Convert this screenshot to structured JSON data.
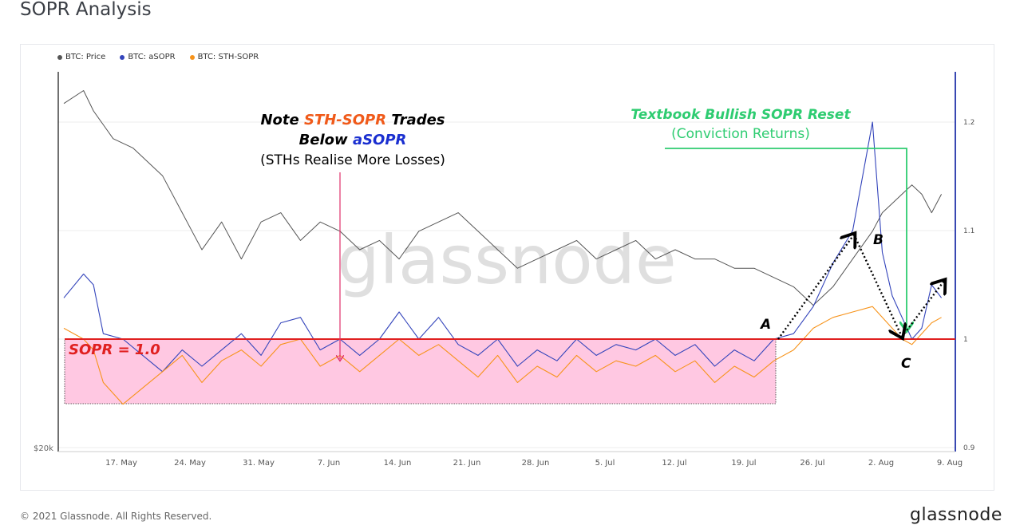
{
  "page": {
    "title": "SOPR Analysis",
    "copyright": "© 2021 Glassnode. All Rights Reserved.",
    "brand": "glassnode",
    "watermark": "glassnode"
  },
  "legend": [
    {
      "label": "BTC: Price",
      "color": "#555555"
    },
    {
      "label": "BTC: aSOPR",
      "color": "#3344bb"
    },
    {
      "label": "BTC: STH-SOPR",
      "color": "#f7931a"
    }
  ],
  "annotations": {
    "note_line1_a": "Note ",
    "note_line1_b": "STH-SOPR",
    "note_line1_c": " Trades",
    "note_line2_a": "Below ",
    "note_line2_b": "aSOPR",
    "note_line3": "(STHs Realise More Losses)",
    "reset_line1": "Textbook Bullish SOPR Reset",
    "reset_line2": "(Conviction Returns)",
    "sopr_label": "SOPR = 1.0",
    "point_a": "A",
    "point_b": "B",
    "point_c": "C"
  },
  "chart_data": {
    "type": "line",
    "x_ticks": [
      "17. May",
      "24. May",
      "31. May",
      "7. Jun",
      "14. Jun",
      "21. Jun",
      "28. Jun",
      "5. Jul",
      "12. Jul",
      "19. Jul",
      "26. Jul",
      "2. Aug",
      "9. Aug"
    ],
    "y_left_label": "$20k",
    "y_right_ticks": [
      {
        "value": 1.2,
        "label": "1.2"
      },
      {
        "value": 1.1,
        "label": "1.1"
      },
      {
        "value": 1.0,
        "label": "1"
      },
      {
        "value": 0.9,
        "label": "0.9"
      }
    ],
    "y_right_range": [
      0.9,
      1.25
    ],
    "x_range": [
      0,
      90
    ],
    "reference_line": 1.0,
    "colors": {
      "price": "#555555",
      "asopr": "#3344bb",
      "sth": "#f7931a",
      "reset": "#2ecc71",
      "ref": "#e02020",
      "shade": "#ffc8e2",
      "arrow_note": "#e0306a"
    },
    "series": [
      {
        "name": "BTC: Price",
        "axis": "left",
        "x": [
          0,
          2,
          3,
          5,
          7,
          9,
          10,
          12,
          13,
          14,
          16,
          18,
          19,
          20,
          22,
          24,
          26,
          28,
          30,
          32,
          34,
          36,
          38,
          40,
          42,
          43,
          44,
          46,
          48,
          50,
          52,
          54,
          56,
          58,
          60,
          62,
          64,
          66,
          68,
          70,
          72,
          74,
          76,
          78,
          80,
          82,
          83,
          84,
          85,
          86,
          87,
          88,
          89
        ],
        "values": [
          1.218,
          1.232,
          1.21,
          1.18,
          1.17,
          1.15,
          1.14,
          1.1,
          1.08,
          1.06,
          1.09,
          1.05,
          1.07,
          1.09,
          1.1,
          1.07,
          1.09,
          1.08,
          1.06,
          1.07,
          1.05,
          1.08,
          1.09,
          1.1,
          1.08,
          1.07,
          1.06,
          1.04,
          1.05,
          1.06,
          1.07,
          1.05,
          1.06,
          1.07,
          1.05,
          1.06,
          1.05,
          1.05,
          1.04,
          1.04,
          1.03,
          1.02,
          1.0,
          1.02,
          1.05,
          1.08,
          1.1,
          1.11,
          1.12,
          1.13,
          1.12,
          1.1,
          1.12
        ]
      },
      {
        "name": "BTC: aSOPR",
        "axis": "right",
        "x": [
          0,
          2,
          3,
          4,
          6,
          8,
          10,
          12,
          14,
          16,
          18,
          20,
          22,
          24,
          26,
          28,
          30,
          32,
          34,
          36,
          38,
          40,
          42,
          44,
          46,
          48,
          50,
          52,
          54,
          56,
          58,
          60,
          62,
          64,
          66,
          68,
          70,
          72,
          74,
          76,
          78,
          80,
          82,
          83,
          84,
          85,
          86,
          87,
          88,
          89
        ],
        "values": [
          1.038,
          1.06,
          1.05,
          1.005,
          1.0,
          0.985,
          0.97,
          0.99,
          0.975,
          0.99,
          1.005,
          0.985,
          1.015,
          1.02,
          0.99,
          1.0,
          0.985,
          1.0,
          1.025,
          1.0,
          1.02,
          0.995,
          0.985,
          1.0,
          0.975,
          0.99,
          0.98,
          1.0,
          0.985,
          0.995,
          0.99,
          1.0,
          0.985,
          0.995,
          0.975,
          0.99,
          0.98,
          1.0,
          1.005,
          1.03,
          1.07,
          1.1,
          1.2,
          1.08,
          1.04,
          1.02,
          1.0,
          1.01,
          1.05,
          1.038
        ]
      },
      {
        "name": "BTC: STH-SOPR",
        "axis": "right",
        "x": [
          0,
          2,
          3,
          4,
          6,
          8,
          10,
          12,
          14,
          16,
          18,
          20,
          22,
          24,
          26,
          28,
          30,
          32,
          34,
          36,
          38,
          40,
          42,
          44,
          46,
          48,
          50,
          52,
          54,
          56,
          58,
          60,
          62,
          64,
          66,
          68,
          70,
          72,
          74,
          76,
          78,
          80,
          82,
          84,
          85,
          86,
          87,
          88,
          89
        ],
        "values": [
          1.01,
          1.0,
          0.99,
          0.96,
          0.94,
          0.955,
          0.97,
          0.985,
          0.96,
          0.98,
          0.99,
          0.975,
          0.995,
          1.0,
          0.975,
          0.985,
          0.97,
          0.985,
          1.0,
          0.985,
          0.995,
          0.98,
          0.965,
          0.985,
          0.96,
          0.975,
          0.965,
          0.985,
          0.97,
          0.98,
          0.975,
          0.985,
          0.97,
          0.98,
          0.96,
          0.975,
          0.965,
          0.98,
          0.99,
          1.01,
          1.02,
          1.025,
          1.03,
          1.01,
          1.0,
          0.995,
          1.005,
          1.015,
          1.02
        ]
      }
    ]
  }
}
